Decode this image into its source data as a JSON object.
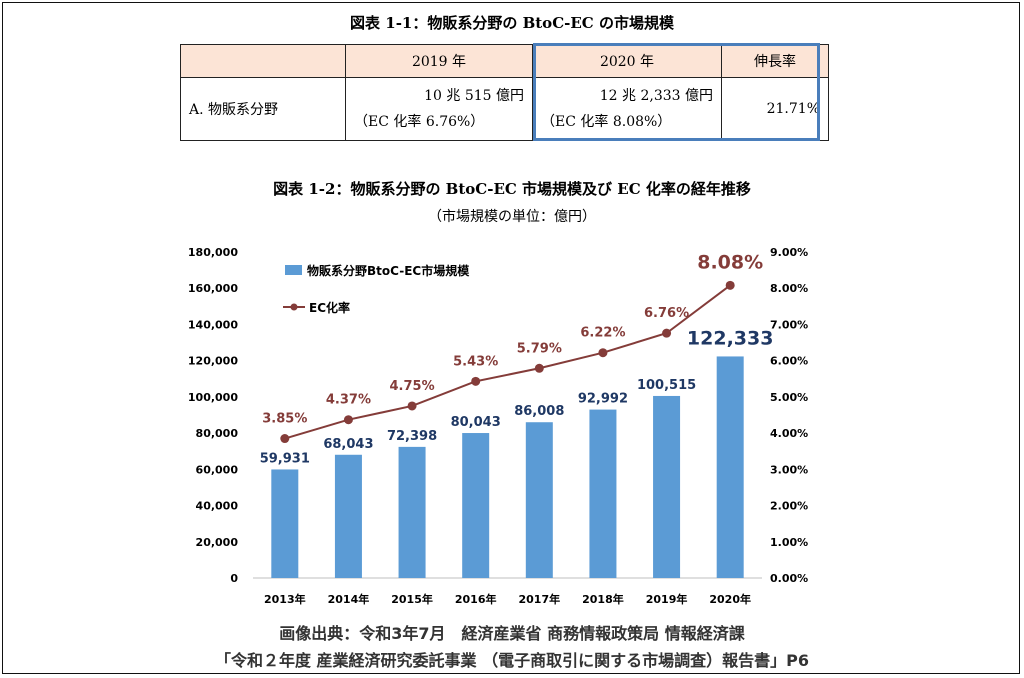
{
  "table": {
    "title": "図表 1-1：物販系分野の BtoC-EC の市場規模",
    "headers": [
      "",
      "2019 年",
      "2020 年",
      "伸長率"
    ],
    "row": {
      "label": "A. 物販系分野",
      "v2019": "10 兆 515 億円",
      "r2019": "（EC 化率 6.76%）",
      "v2020": "12 兆 2,333 億円",
      "r2020": "（EC 化率 8.08%）",
      "growth": "21.71%"
    }
  },
  "chart_title": "図表 1-2：物販系分野の BtoC-EC 市場規模及び EC 化率の経年推移",
  "chart_subtitle": "（市場規模の単位：億円）",
  "chart_data": {
    "type": "bar",
    "categories": [
      "2013年",
      "2014年",
      "2015年",
      "2016年",
      "2017年",
      "2018年",
      "2019年",
      "2020年"
    ],
    "series": [
      {
        "name": "物販系分野BtoC-EC市場規模",
        "type": "bar",
        "axis": "left",
        "values": [
          59931,
          68043,
          72398,
          80043,
          86008,
          92992,
          100515,
          122333
        ],
        "labels": [
          "59,931",
          "68,043",
          "72,398",
          "80,043",
          "86,008",
          "92,992",
          "100,515",
          "122,333"
        ]
      },
      {
        "name": "EC化率",
        "type": "line",
        "axis": "right",
        "values": [
          3.85,
          4.37,
          4.75,
          5.43,
          5.79,
          6.22,
          6.76,
          8.08
        ],
        "labels": [
          "3.85%",
          "4.37%",
          "4.75%",
          "5.43%",
          "5.79%",
          "6.22%",
          "6.76%",
          "8.08%"
        ]
      }
    ],
    "y_left": {
      "ylim": [
        0,
        180000
      ],
      "ticks": [
        "0",
        "20,000",
        "40,000",
        "60,000",
        "80,000",
        "100,000",
        "120,000",
        "140,000",
        "160,000",
        "180,000"
      ]
    },
    "y_right": {
      "ylim": [
        0,
        9
      ],
      "ticks": [
        "0.00%",
        "1.00%",
        "2.00%",
        "3.00%",
        "4.00%",
        "5.00%",
        "6.00%",
        "7.00%",
        "8.00%",
        "9.00%"
      ]
    },
    "legend_position": "top-left",
    "grid": false,
    "colors": {
      "bar": "#5b9bd5",
      "line": "#843c39",
      "bar_label": "#1f3864"
    }
  },
  "source": {
    "line1": "画像出典：令和3年7月　経済産業省 商務情報政策局 情報経済課",
    "line2": "「令和２年度 産業経済研究委託事業 （電子商取引に関する市場調査）報告書」P6"
  }
}
